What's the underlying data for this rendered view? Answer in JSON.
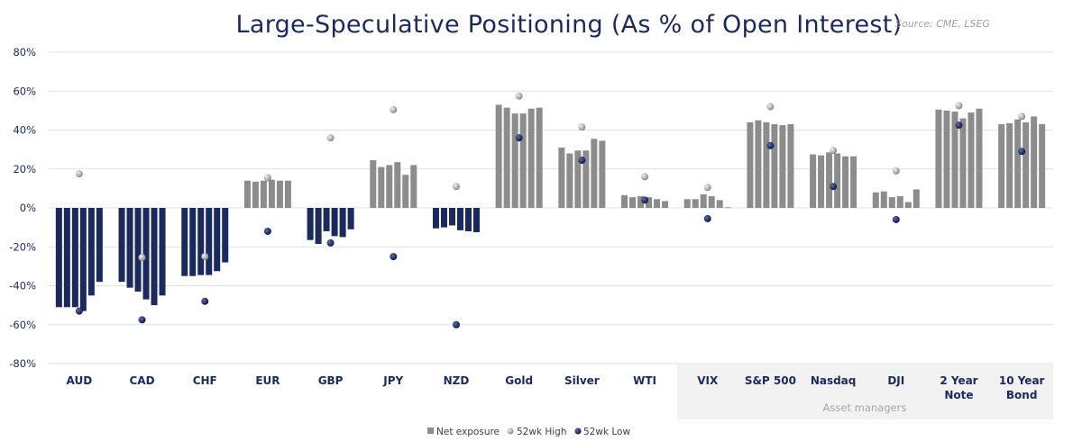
{
  "chart_data": {
    "type": "bar",
    "title": "Large-Speculative Positioning (As % of Open Interest)",
    "source": "Source: CME, LSEG",
    "ylim": [
      -80,
      80
    ],
    "yticks": [
      "80%",
      "60%",
      "40%",
      "20%",
      "0%",
      "-20%",
      "-40%",
      "-60%",
      "-80%"
    ],
    "ytick_values": [
      80,
      60,
      40,
      20,
      0,
      -20,
      -40,
      -60,
      -80
    ],
    "grid": true,
    "legend_position": "bottom",
    "legend": [
      "Net exposure",
      "52wk High",
      "52wk Low"
    ],
    "group_label": "Asset managers",
    "group_start_category": "VIX",
    "colors": {
      "positive": "#8c8c8c",
      "negative": "#1b2a5e",
      "high": "#b8b8b8",
      "low": "#1b2a5e",
      "panel": "#f2f2f2"
    },
    "categories": [
      "AUD",
      "CAD",
      "CHF",
      "EUR",
      "GBP",
      "JPY",
      "NZD",
      "Gold",
      "Silver",
      "WTI",
      "VIX",
      "S&P 500",
      "Nasdaq",
      "DJI",
      "2 Year Note",
      "10 Year Bond"
    ],
    "series": [
      {
        "name": "Net exposure",
        "values": [
          [
            -51,
            -51,
            -51,
            -53,
            -45,
            -38
          ],
          [
            -38,
            -41,
            -43,
            -47,
            -50,
            -45
          ],
          [
            -35,
            -35,
            -34.5,
            -34.5,
            -32.5,
            -28
          ],
          [
            14,
            13.5,
            14,
            14.5,
            14,
            14
          ],
          [
            -16.5,
            -18.5,
            -12,
            -14.5,
            -15,
            -11
          ],
          [
            24.5,
            21,
            22,
            23.5,
            17,
            22
          ],
          [
            -10.5,
            -10,
            -9,
            -11.5,
            -12,
            -12.5
          ],
          [
            53,
            51.5,
            48.5,
            48.5,
            51,
            51.5
          ],
          [
            31,
            28,
            29.5,
            29.5,
            35.5,
            34.5
          ],
          [
            6.5,
            5.5,
            6,
            5.5,
            4.5,
            3.5
          ],
          [
            4.5,
            4.5,
            7,
            6,
            4,
            0.3
          ],
          [
            44,
            45,
            44,
            43,
            42.5,
            43
          ],
          [
            27.5,
            27,
            28.5,
            28,
            26.5,
            26.5
          ],
          [
            8,
            8.5,
            5.5,
            6,
            3,
            9.5
          ],
          [
            50.5,
            50,
            49.5,
            46,
            49,
            51
          ],
          [
            43,
            43.5,
            45.5,
            44,
            47,
            43
          ]
        ]
      },
      {
        "name": "52wk High",
        "values": [
          17.5,
          -25.5,
          -25,
          15.5,
          36,
          50.5,
          11,
          57.5,
          41.5,
          16,
          10.5,
          52,
          29.5,
          19,
          52.5,
          47
        ]
      },
      {
        "name": "52wk Low",
        "values": [
          -53,
          -57.5,
          -48,
          -12,
          -18,
          -25,
          -60,
          36,
          24.5,
          4,
          -5.5,
          32,
          11,
          -6,
          42.5,
          29
        ]
      }
    ]
  }
}
